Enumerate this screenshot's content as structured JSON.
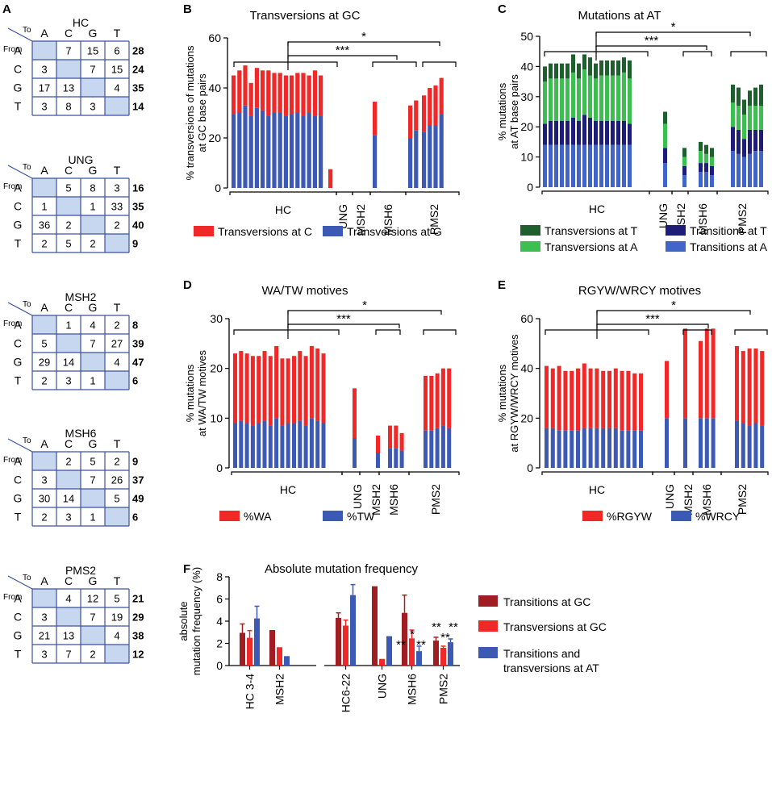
{
  "colors": {
    "red": "#f02828",
    "blue": "#3c5ab4",
    "dark_green": "#1e5f2d",
    "light_green": "#3cbe50",
    "navy": "#1e1e78",
    "mid_blue": "#4164c8",
    "dark_red": "#a01e23",
    "grid_fill": "#c8d7f0",
    "grid_line": "#3c50a0"
  },
  "panel_letters": {
    "a": "A",
    "b": "B",
    "c": "C",
    "d": "D",
    "e": "E",
    "f": "F"
  },
  "matrix_headers": {
    "to": "To",
    "from": "From",
    "bases": [
      "A",
      "C",
      "G",
      "T"
    ]
  },
  "matrices": [
    {
      "name": "HC",
      "cells": [
        [
          "",
          "7",
          "15",
          "6"
        ],
        [
          "3",
          "",
          "7",
          "15"
        ],
        [
          "17",
          "13",
          "",
          "4"
        ],
        [
          "3",
          "8",
          "3",
          ""
        ]
      ],
      "totals": [
        "28",
        "24",
        "35",
        "14"
      ]
    },
    {
      "name": "UNG",
      "cells": [
        [
          "",
          "5",
          "8",
          "3"
        ],
        [
          "1",
          "",
          "1",
          "33"
        ],
        [
          "36",
          "2",
          "",
          "2"
        ],
        [
          "2",
          "5",
          "2",
          ""
        ]
      ],
      "totals": [
        "16",
        "35",
        "40",
        "9"
      ]
    },
    {
      "name": "MSH2",
      "cells": [
        [
          "",
          "1",
          "4",
          "2"
        ],
        [
          "5",
          "",
          "7",
          "27"
        ],
        [
          "29",
          "14",
          "",
          "4"
        ],
        [
          "2",
          "3",
          "1",
          ""
        ]
      ],
      "totals": [
        "8",
        "39",
        "47",
        "6"
      ]
    },
    {
      "name": "MSH6",
      "cells": [
        [
          "",
          "2",
          "5",
          "2"
        ],
        [
          "3",
          "",
          "7",
          "26"
        ],
        [
          "30",
          "14",
          "",
          "5"
        ],
        [
          "2",
          "3",
          "1",
          ""
        ]
      ],
      "totals": [
        "9",
        "37",
        "49",
        "6"
      ]
    },
    {
      "name": "PMS2",
      "cells": [
        [
          "",
          "4",
          "12",
          "5"
        ],
        [
          "3",
          "",
          "7",
          "19"
        ],
        [
          "21",
          "13",
          "",
          "4"
        ],
        [
          "3",
          "7",
          "2",
          ""
        ]
      ],
      "totals": [
        "21",
        "29",
        "38",
        "12"
      ]
    }
  ],
  "group_labels": [
    "HC",
    "UNG",
    "MSH2",
    "MSH6",
    "PMS2"
  ],
  "chart_data": [
    {
      "id": "B",
      "type": "bar",
      "stacked": true,
      "title": "Transversions at GC",
      "ylabel": "% transversions of mutations at GC base pairs",
      "ylim": [
        0,
        60
      ],
      "yticks": [
        0,
        20,
        40,
        60
      ],
      "groups": [
        {
          "label": "HC",
          "count": 16
        },
        {
          "label": "UNG",
          "count": 1
        },
        {
          "label": "MSH2",
          "count": 1
        },
        {
          "label": "MSH6",
          "count": 2
        },
        {
          "label": "PMS2",
          "count": 4
        }
      ],
      "series": [
        {
          "name": "Transversions at G",
          "color": "#3c5ab4",
          "values": [
            29.5,
            30,
            33,
            29,
            32,
            31,
            29,
            30,
            30,
            29,
            29.5,
            30,
            29,
            30,
            29,
            29,
            0,
            21,
            20,
            23,
            22.5,
            25,
            25,
            29.5
          ]
        },
        {
          "name": "Transversions at C",
          "color": "#f02828",
          "values": [
            15.5,
            17,
            16,
            13,
            16,
            16,
            18,
            16,
            16,
            16,
            15.5,
            16,
            17,
            15,
            18,
            16,
            7.5,
            13.5,
            13,
            12,
            14.5,
            15,
            16,
            14.5
          ]
        }
      ],
      "significance": [
        {
          "label": "*",
          "from": "HC",
          "to": "PMS2"
        },
        {
          "label": "***",
          "from": "HC",
          "to": "MSH6"
        }
      ]
    },
    {
      "id": "C",
      "type": "bar",
      "stacked": true,
      "title": "Mutations at AT",
      "ylabel": "% mutations at AT base pairs",
      "ylim": [
        0,
        50
      ],
      "yticks": [
        0,
        10,
        20,
        30,
        40,
        50
      ],
      "groups": [
        {
          "label": "HC",
          "count": 16
        },
        {
          "label": "UNG",
          "count": 1
        },
        {
          "label": "MSH2",
          "count": 1
        },
        {
          "label": "MSH6",
          "count": 3
        },
        {
          "label": "PMS2",
          "count": 6
        }
      ],
      "series": [
        {
          "name": "Transitions at A",
          "color": "#4164c8",
          "values": [
            14,
            14,
            14,
            14,
            14,
            14,
            14,
            14,
            14,
            14,
            14,
            14,
            14,
            14,
            14,
            14,
            8,
            4,
            5,
            5,
            4,
            12,
            11,
            10,
            11,
            12,
            12
          ]
        },
        {
          "name": "Transitions at T",
          "color": "#1e1e78",
          "values": [
            7,
            8,
            8,
            8,
            8,
            9,
            8,
            10,
            9,
            8,
            8,
            8,
            8,
            8,
            8,
            7,
            5,
            3,
            3,
            3,
            3,
            8,
            8,
            6,
            8,
            7,
            7
          ]
        },
        {
          "name": "Transversions at A",
          "color": "#3cbe50",
          "values": [
            14,
            14,
            14,
            14,
            14,
            15,
            14,
            15,
            14,
            14,
            15,
            15,
            15,
            15,
            16,
            15,
            8,
            3,
            4,
            3,
            3,
            8,
            8,
            8,
            8,
            8,
            8
          ]
        },
        {
          "name": "Transversions at T",
          "color": "#1e5f2d",
          "values": [
            5,
            5,
            5,
            5,
            5,
            6,
            5,
            5,
            6,
            5,
            5,
            5,
            5,
            5,
            5,
            6,
            4,
            3,
            3,
            3,
            3,
            6,
            6,
            5,
            5,
            6,
            7
          ]
        }
      ],
      "significance": [
        {
          "label": "*",
          "from": "HC",
          "to": "PMS2"
        },
        {
          "label": "***",
          "from": "HC",
          "to": "MSH6"
        }
      ]
    },
    {
      "id": "D",
      "type": "bar",
      "stacked": true,
      "title": "WA/TW motives",
      "ylabel": "% mutations at WA/TW motives",
      "ylim": [
        0,
        30
      ],
      "yticks": [
        0,
        10,
        20,
        30
      ],
      "groups": [
        {
          "label": "HC",
          "count": 16
        },
        {
          "label": "UNG",
          "count": 1
        },
        {
          "label": "MSH2",
          "count": 1
        },
        {
          "label": "MSH6",
          "count": 3
        },
        {
          "label": "PMS2",
          "count": 5
        }
      ],
      "series": [
        {
          "name": "%TW",
          "color": "#3c5ab4",
          "values": [
            9,
            9.5,
            9,
            8.5,
            9,
            9.5,
            8.5,
            10,
            8.5,
            9,
            9,
            9.5,
            8.5,
            10,
            9.5,
            9,
            6,
            3,
            4,
            4,
            3.5,
            7.5,
            7.5,
            8,
            8.5,
            8
          ]
        },
        {
          "name": "%WA",
          "color": "#f02828",
          "values": [
            14,
            14,
            14,
            14,
            13.5,
            14,
            14,
            14.5,
            13.5,
            13,
            13.5,
            14,
            14,
            14.5,
            14.5,
            14,
            10,
            3.5,
            4.5,
            4.5,
            3.5,
            11,
            11,
            11,
            11.5,
            12
          ]
        }
      ],
      "significance": [
        {
          "label": "*",
          "from": "HC",
          "to": "PMS2"
        },
        {
          "label": "***",
          "from": "HC",
          "to": "MSH6"
        }
      ]
    },
    {
      "id": "E",
      "type": "bar",
      "stacked": true,
      "title": "RGYW/WRCY motives",
      "ylabel": "% mutations at RGYW/WRCY motives",
      "ylim": [
        0,
        60
      ],
      "yticks": [
        0,
        20,
        40,
        60
      ],
      "groups": [
        {
          "label": "HC",
          "count": 16
        },
        {
          "label": "UNG",
          "count": 1
        },
        {
          "label": "MSH2",
          "count": 1
        },
        {
          "label": "MSH6",
          "count": 3
        },
        {
          "label": "PMS2",
          "count": 5
        }
      ],
      "series": [
        {
          "name": "%WRCY",
          "color": "#3c5ab4",
          "values": [
            16,
            16,
            15,
            15,
            15,
            15,
            16,
            16,
            16,
            16,
            16,
            16,
            15,
            15,
            15,
            15,
            20,
            20,
            20,
            20,
            20,
            19,
            18,
            17,
            18,
            17
          ]
        },
        {
          "name": "%RGYW",
          "color": "#f02828",
          "values": [
            25,
            24,
            26,
            24,
            24,
            25,
            26,
            24,
            24,
            23,
            23,
            24,
            24,
            24,
            23,
            23,
            23,
            36,
            31,
            36,
            36,
            30,
            29,
            31,
            30,
            30
          ]
        }
      ],
      "significance": [
        {
          "label": "*",
          "from": "HC",
          "to": "PMS2"
        },
        {
          "label": "***",
          "from": "HC",
          "to": "MSH6"
        }
      ]
    },
    {
      "id": "F",
      "type": "bar",
      "stacked": false,
      "title": "Absolute mutation frequency",
      "ylabel": "absolute mutation frequency (%)",
      "ylim": [
        0,
        8
      ],
      "yticks": [
        0,
        2,
        4,
        6,
        8
      ],
      "categories": [
        "HC 3-4",
        "MSH2",
        "HC6-22",
        "UNG",
        "MSH6",
        "PMS2"
      ],
      "series": [
        {
          "name": "Transitions at GC",
          "color": "#a01e23",
          "values": [
            2.95,
            3.2,
            4.3,
            7.15,
            4.75,
            2.25
          ],
          "errors": [
            0.8,
            0,
            0.45,
            0,
            1.6,
            0.3
          ]
        },
        {
          "name": "Transversions at GC",
          "color": "#f02828",
          "values": [
            2.5,
            1.65,
            3.6,
            0.6,
            2.45,
            1.6
          ],
          "errors": [
            0.65,
            0,
            0.5,
            0,
            0.75,
            0.15
          ]
        },
        {
          "name": "Transitions and transversions at AT",
          "color": "#3c5ab4",
          "values": [
            4.25,
            0.85,
            6.35,
            2.65,
            1.3,
            2.1
          ],
          "errors": [
            1.1,
            0,
            0.95,
            0,
            0.45,
            0.3
          ]
        }
      ],
      "annotations": {
        "MSH6": [
          "*",
          "**",
          "**"
        ],
        "PMS2": [
          "**",
          "**",
          "**"
        ]
      }
    }
  ]
}
